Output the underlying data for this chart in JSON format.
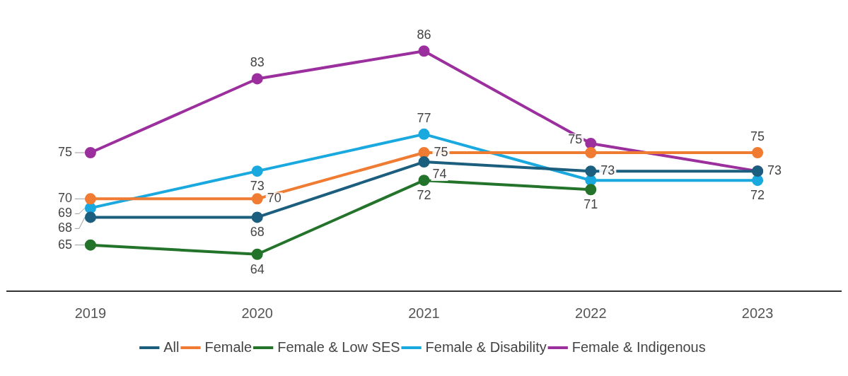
{
  "chart_data": {
    "type": "line",
    "categories": [
      "2019",
      "2020",
      "2021",
      "2022",
      "2023"
    ],
    "tick_labels": "x",
    "grid": false,
    "legend": "bottom",
    "marker": "circle",
    "line_style": "solid",
    "series": [
      {
        "name": "All",
        "color": "#1b5e7d",
        "values": [
          68,
          68,
          74,
          73,
          73
        ],
        "value_labels": [
          "68",
          "68",
          "74",
          "73",
          null
        ]
      },
      {
        "name": "Female",
        "color": "#f07b32",
        "values": [
          70,
          70,
          75,
          75,
          75
        ],
        "value_labels": [
          "70",
          "70",
          "75",
          "75",
          "75"
        ]
      },
      {
        "name": "Female & Low SES",
        "color": "#23732a",
        "values": [
          65,
          64,
          72,
          71,
          null
        ],
        "value_labels": [
          "65",
          "64",
          "72",
          "71",
          null
        ]
      },
      {
        "name": "Female & Disability",
        "color": "#1aa9df",
        "values": [
          69,
          73,
          77,
          72,
          72
        ],
        "value_labels": [
          "69",
          "73",
          "77",
          null,
          "72"
        ]
      },
      {
        "name": "Female & Indigenous",
        "color": "#9b2f9e",
        "values": [
          75,
          83,
          86,
          76,
          73
        ],
        "value_labels": [
          "75",
          "83",
          "86",
          null,
          "73"
        ]
      }
    ]
  }
}
